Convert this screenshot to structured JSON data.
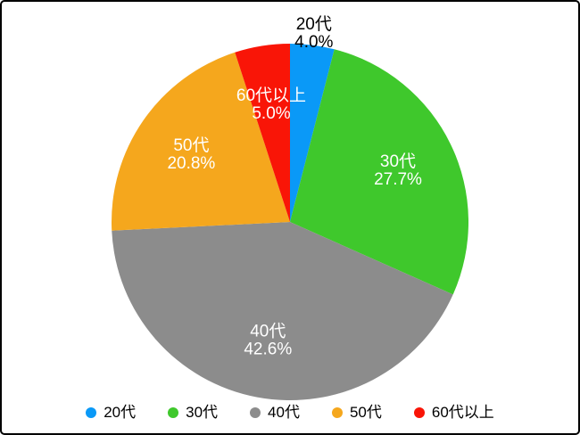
{
  "figure": {
    "background": "#ffffff",
    "border_color": "#000000",
    "title": ""
  },
  "chart_data": {
    "type": "pie",
    "title": "",
    "direction": "clockwise",
    "start_angle_deg": 0,
    "legend_position": "bottom",
    "slices": [
      {
        "label": "20代",
        "value": 4.0,
        "percent_label": "4.0%",
        "color": "#0a99f7",
        "label_color": "#000000",
        "label_position": "outside"
      },
      {
        "label": "30代",
        "value": 27.7,
        "percent_label": "27.7%",
        "color": "#3fc82c",
        "label_color": "#ffffff",
        "label_position": "inside"
      },
      {
        "label": "40代",
        "value": 42.6,
        "percent_label": "42.6%",
        "color": "#8c8c8c",
        "label_color": "#ffffff",
        "label_position": "inside"
      },
      {
        "label": "50代",
        "value": 20.8,
        "percent_label": "20.8%",
        "color": "#f5a71d",
        "label_color": "#ffffff",
        "label_position": "inside"
      },
      {
        "label": "60代以上",
        "value": 5.0,
        "percent_label": "5.0%",
        "color": "#f91507",
        "label_color": "#ffffff",
        "label_position": "inside"
      }
    ]
  }
}
